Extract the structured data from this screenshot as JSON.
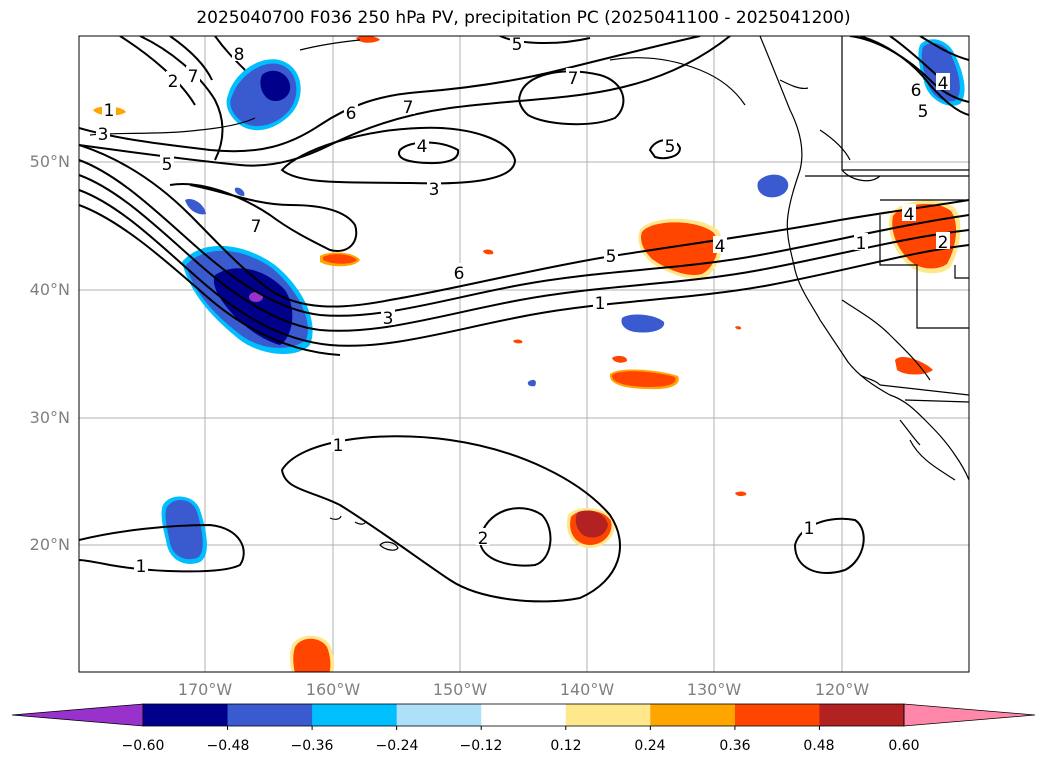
{
  "title": "2025040700 F036 250 hPa PV, precipitation PC (2025041100 - 2025041200)",
  "lat_labels": [
    "50°N",
    "40°N",
    "30°N",
    "20°N"
  ],
  "lon_labels": [
    "170°W",
    "160°W",
    "150°W",
    "140°W",
    "130°W",
    "120°W"
  ],
  "colorbar": {
    "ticks": [
      "−0.60",
      "−0.48",
      "−0.36",
      "−0.24",
      "−0.12",
      "0.12",
      "0.24",
      "0.36",
      "0.48",
      "0.60"
    ],
    "colors": [
      "#9932cc",
      "#00008b",
      "#3a5bd0",
      "#00bfff",
      "#aee0fa",
      "#ffffff",
      "#ffe88c",
      "#ffa500",
      "#ff4500",
      "#b22222",
      "#ff88aa"
    ]
  },
  "contour_labels": [
    "8",
    "7",
    "2",
    "4",
    "3",
    "1",
    "5",
    "6",
    "7",
    "5",
    "7",
    "6",
    "4",
    "5",
    "5",
    "7",
    "6",
    "5",
    "3",
    "1",
    "4",
    "2",
    "1",
    "1",
    "2",
    "1",
    "1",
    "3",
    "4",
    "5"
  ],
  "legend_meaning": {
    "negative": "blue",
    "positive": "red"
  }
}
